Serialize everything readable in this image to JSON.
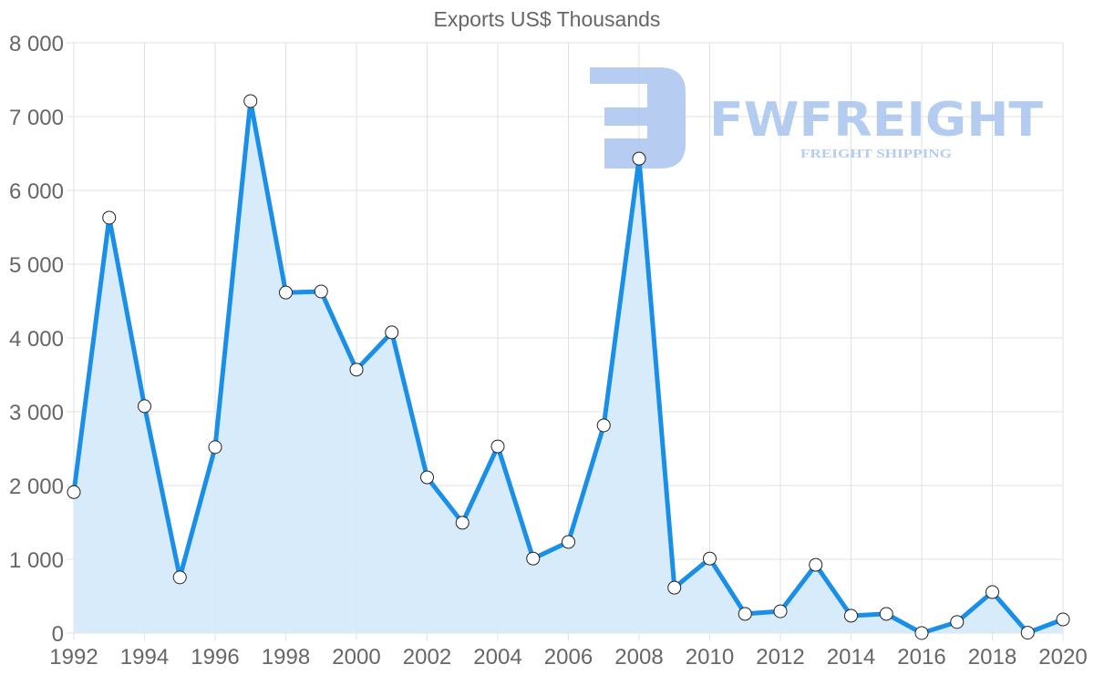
{
  "chart_data": {
    "type": "area",
    "title": "Exports US$ Thousands",
    "xlabel": "",
    "ylabel": "",
    "x": [
      1992,
      1993,
      1994,
      1995,
      1996,
      1997,
      1998,
      1999,
      2000,
      2001,
      2002,
      2003,
      2004,
      2005,
      2006,
      2007,
      2008,
      2009,
      2010,
      2011,
      2012,
      2013,
      2014,
      2015,
      2016,
      2017,
      2018,
      2019,
      2020
    ],
    "series": [
      {
        "name": "Exports US$ Thousands",
        "values": [
          1910,
          5630,
          3075,
          755,
          2520,
          7210,
          4615,
          4630,
          3570,
          4075,
          2110,
          1495,
          2530,
          1010,
          1235,
          2815,
          6430,
          615,
          1010,
          260,
          295,
          925,
          235,
          260,
          0,
          150,
          555,
          5,
          185
        ]
      }
    ],
    "x_tick_labels": [
      "1992",
      "1994",
      "1996",
      "1998",
      "2000",
      "2002",
      "2004",
      "2006",
      "2008",
      "2010",
      "2012",
      "2014",
      "2016",
      "2018",
      "2020"
    ],
    "y_tick_labels": [
      "0",
      "1 000",
      "2 000",
      "3 000",
      "4 000",
      "5 000",
      "6 000",
      "7 000",
      "8 000"
    ],
    "ylim": [
      0,
      8000
    ],
    "xlim": [
      1992,
      2020
    ],
    "grid": true,
    "legend": "none",
    "colors": {
      "line": "#1a8fe8",
      "fill": "#d6eafb",
      "grid": "#e0e0e0",
      "marker_fill": "#ffffff",
      "marker_stroke": "#222222"
    }
  },
  "watermark": {
    "brand": "FWFREIGHT",
    "tagline": "FREIGHT SHIPPING",
    "color": "#a9c4ef"
  }
}
